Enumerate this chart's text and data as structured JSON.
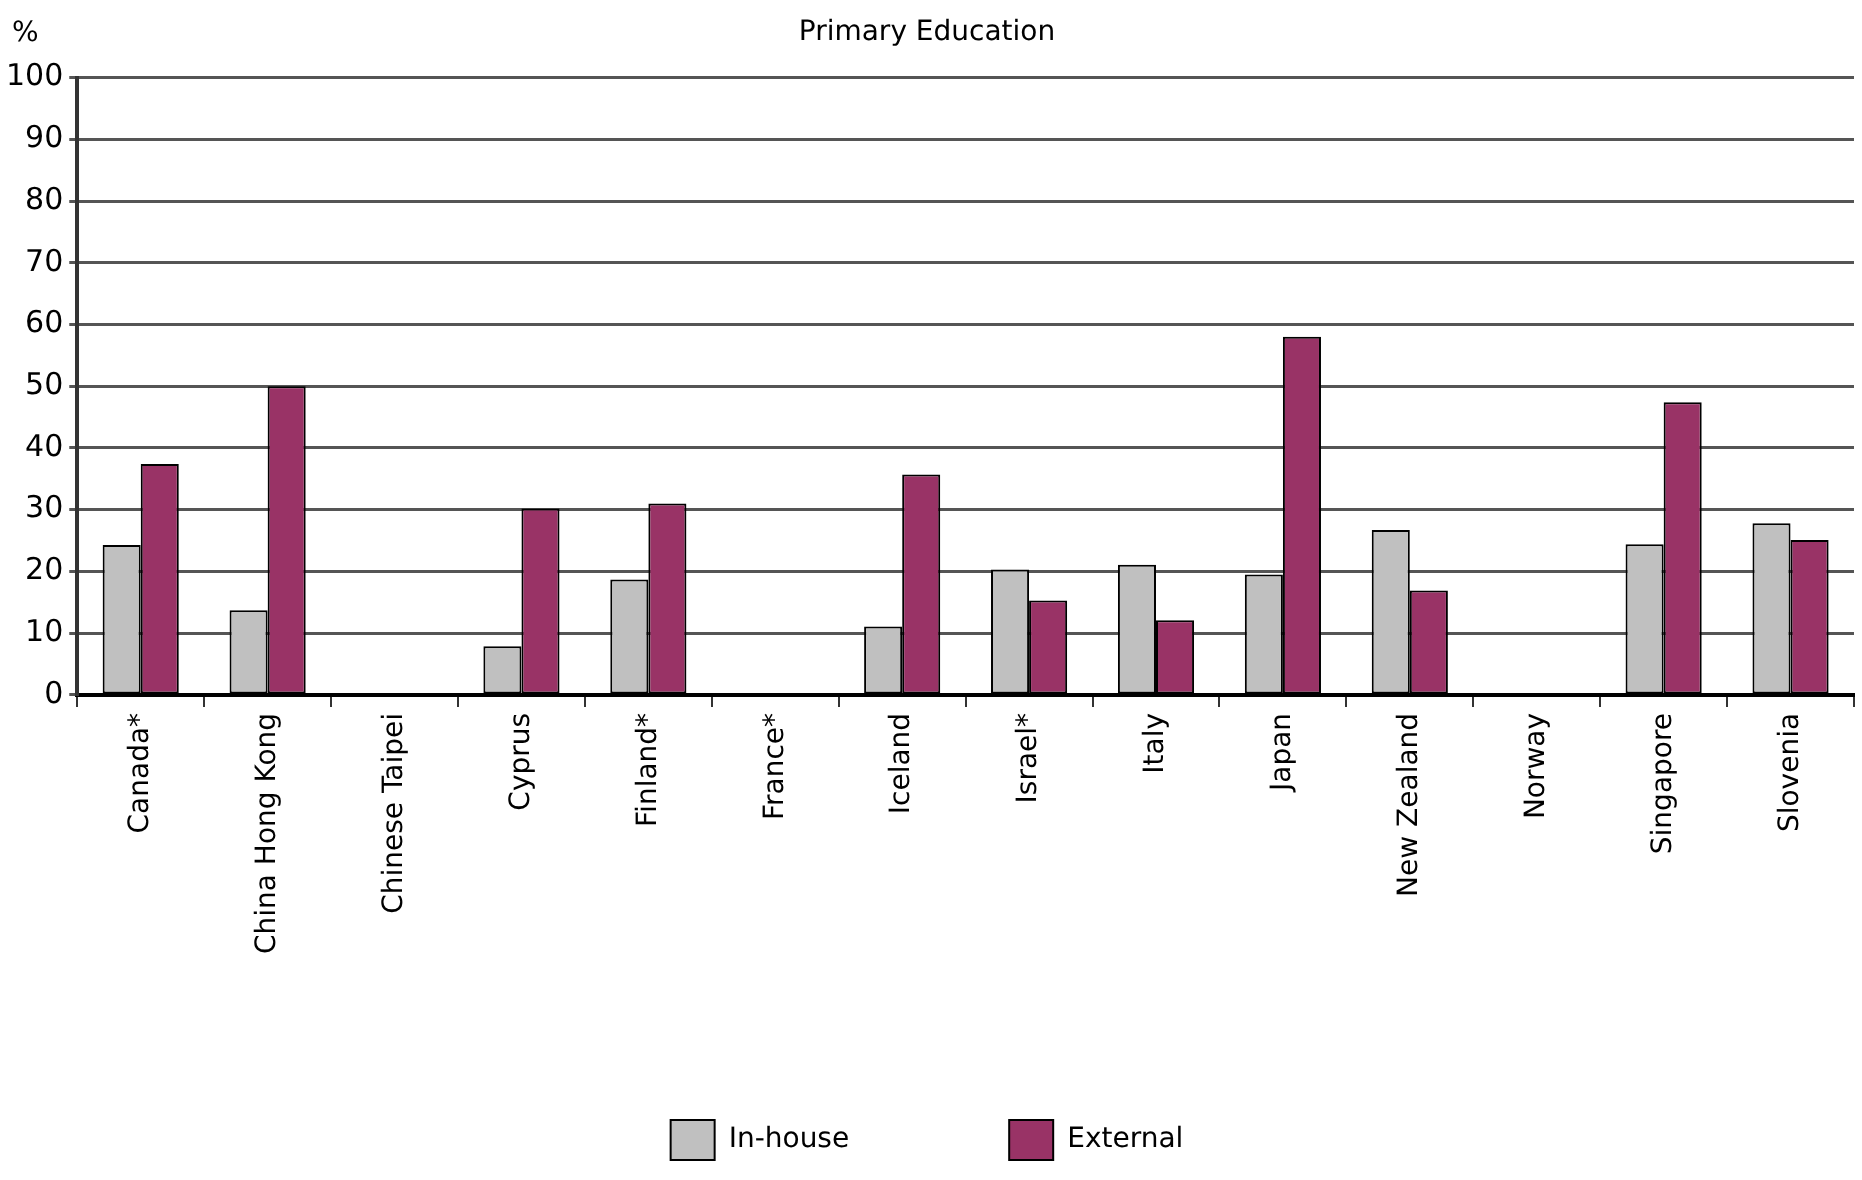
{
  "chart_data": {
    "type": "bar",
    "title": "Primary Education",
    "ylabel": "%",
    "categories": [
      "Canada*",
      "China Hong Kong",
      "Chinese Taipei",
      "Cyprus",
      "Finland*",
      "France*",
      "Iceland",
      "Israel*",
      "Italy",
      "Japan",
      "New Zealand",
      "Norway",
      "Singapore",
      "Slovenia"
    ],
    "series": [
      {
        "name": "In-house",
        "color": "#c0c0c0",
        "values": [
          24.3,
          13.7,
          null,
          7.9,
          18.7,
          null,
          11.1,
          20.3,
          21.1,
          19.5,
          26.7,
          null,
          24.4,
          27.8
        ]
      },
      {
        "name": "External",
        "color": "#993366",
        "values": [
          37.4,
          50,
          null,
          30.2,
          31,
          null,
          35.7,
          15.3,
          12.1,
          58,
          16.9,
          null,
          47.4,
          25.1
        ]
      }
    ],
    "ylim": [
      0,
      100
    ],
    "yticks": [
      0,
      10,
      20,
      30,
      40,
      50,
      60,
      70,
      80,
      90,
      100
    ],
    "grid": "y",
    "legend": "bottom"
  }
}
